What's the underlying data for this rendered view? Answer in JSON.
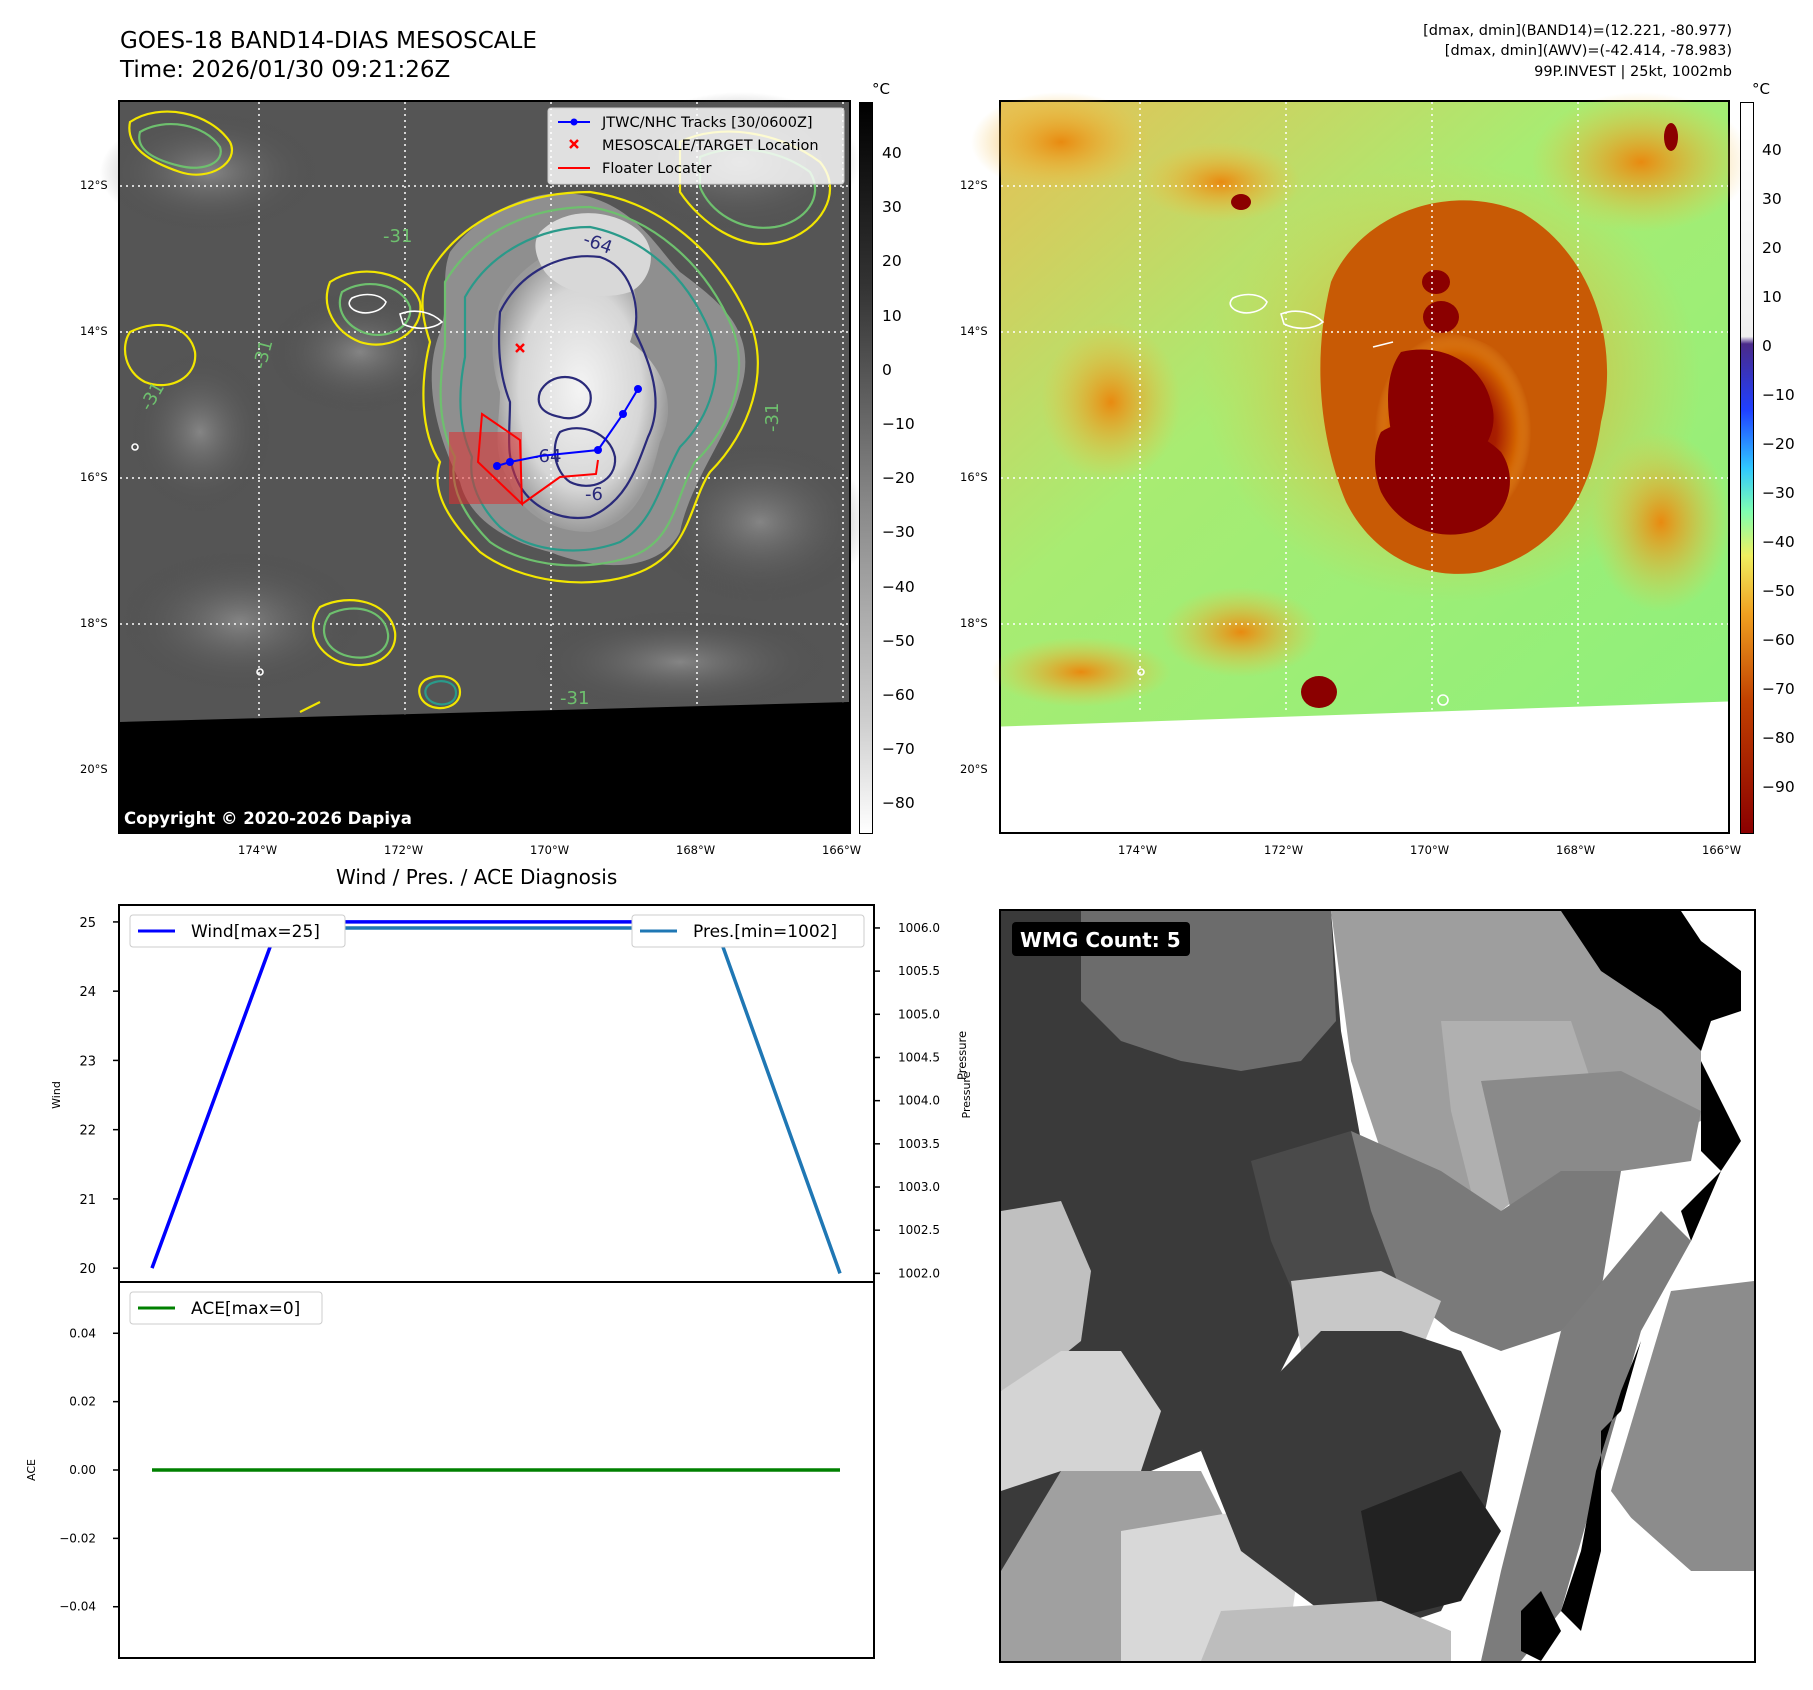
{
  "header": {
    "title_line1": "GOES-18 BAND14-DIAS MESOSCALE",
    "title_line2": "Time: 2026/01/30 09:21:26Z",
    "meta_line1": "[dmax, dmin](BAND14)=(12.221, -80.977)",
    "meta_line2": "[dmax, dmin](AWV)=(-42.414, -78.983)",
    "meta_line3": "99P.INVEST | 25kt, 1002mb"
  },
  "map": {
    "lat_labels": [
      "12°S",
      "14°S",
      "16°S",
      "18°S",
      "20°S"
    ],
    "lon_labels": [
      "174°W",
      "172°W",
      "170°W",
      "168°W",
      "166°W"
    ],
    "copyright": "Copyright © 2020-2026 Dapiya",
    "legend": {
      "tracks": "JTWC/NHC Tracks [30/0600Z]",
      "target": "MESOSCALE/TARGET Location",
      "floater": "Floater Locater"
    },
    "contour_labels": [
      "-31",
      "-31",
      "-31",
      "-31",
      "-31",
      "-64",
      "-64",
      "-6"
    ],
    "colors": {
      "track": "#0000ff",
      "target": "#ff0000",
      "floater": "#ff0000"
    }
  },
  "colorbar_left": {
    "unit": "°C",
    "ticks": [
      "40",
      "30",
      "20",
      "10",
      "0",
      "−10",
      "−20",
      "−30",
      "−40",
      "−50",
      "−60",
      "−70",
      "−80"
    ]
  },
  "colorbar_right": {
    "unit": "°C",
    "ticks": [
      "40",
      "30",
      "20",
      "10",
      "0",
      "−10",
      "−20",
      "−30",
      "−40",
      "−50",
      "−60",
      "−70",
      "−80",
      "−90"
    ]
  },
  "diag": {
    "title": "Wind / Pres. / ACE Diagnosis",
    "wind_ylabel": "Wind",
    "pres_ylabel": "Pressure",
    "ace_ylabel": "ACE",
    "wind_ticks": [
      "25",
      "24",
      "23",
      "22",
      "21",
      "20"
    ],
    "pres_ticks": [
      "1006.0",
      "1005.5",
      "1005.0",
      "1004.5",
      "1004.0",
      "1003.5",
      "1003.0",
      "1002.5",
      "1002.0"
    ],
    "ace_ticks": [
      "0.04",
      "0.02",
      "0.00",
      "−0.02",
      "−0.04"
    ],
    "wind_legend": "Wind[max=25]",
    "pres_legend": "Pres.[min=1002]",
    "ace_legend": "ACE[max=0]"
  },
  "wmg": {
    "label": "WMG Count: 5"
  },
  "chart_data": [
    {
      "type": "line",
      "title": "Wind / Pres. / ACE Diagnosis",
      "xlabel": "",
      "series": [
        {
          "name": "Wind[max=25]",
          "axis": "left",
          "color": "#0000ff",
          "x": [
            0,
            0.185,
            1.0
          ],
          "values": [
            20,
            25,
            25
          ]
        },
        {
          "name": "Pres.[min=1002]",
          "axis": "right",
          "color": "#1f77b4",
          "x": [
            0,
            0.82,
            1.0
          ],
          "values": [
            1006,
            1006,
            1002
          ]
        }
      ],
      "ylim_left": [
        19.8,
        25.1
      ],
      "ylim_right": [
        1001.9,
        1006.15
      ],
      "ylabel_left": "Wind",
      "ylabel_right": "Pressure"
    },
    {
      "type": "line",
      "title": "",
      "series": [
        {
          "name": "ACE[max=0]",
          "color": "#008000",
          "x": [
            0,
            1.0
          ],
          "values": [
            0,
            0
          ]
        }
      ],
      "ylim": [
        -0.055,
        0.055
      ],
      "ylabel": "ACE"
    }
  ]
}
